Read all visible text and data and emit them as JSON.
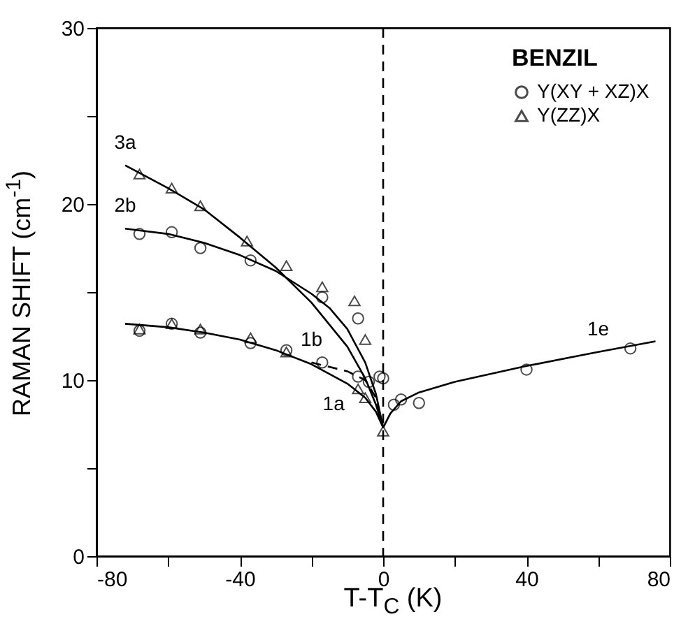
{
  "chart_data": {
    "type": "scatter",
    "xlabel": "T-T$_{C}$ (K)",
    "ylabel": "RAMAN SHIFT (cm$^{-1}$)",
    "legend_title": "BENZIL",
    "legend": "top right",
    "grid": false,
    "xlim": [
      -80,
      80
    ],
    "ylim": [
      0,
      30
    ],
    "xticks": [
      -80,
      {
        "value": -60,
        "label": null
      },
      -40,
      {
        "value": -20,
        "label": null
      },
      0,
      {
        "value": 20,
        "label": null
      },
      40,
      {
        "value": 60,
        "label": null
      },
      80
    ],
    "yticks": [
      0,
      {
        "value": 5,
        "label": null
      },
      10,
      {
        "value": 15,
        "label": null
      },
      20,
      {
        "value": 25,
        "label": null
      },
      30
    ],
    "series": [
      {
        "name": "Y(XY + XZ)X",
        "marker": "circle",
        "color": "#000000",
        "x": [
          -68,
          -59,
          -51,
          -37,
          -17,
          -7,
          -1,
          -68,
          -59,
          -51,
          -37,
          -27,
          -17,
          -7,
          -4,
          0,
          3,
          5,
          10,
          40,
          69
        ],
        "values": [
          18.3,
          18.4,
          17.5,
          16.8,
          14.7,
          13.5,
          10.2,
          12.8,
          13.2,
          12.7,
          12.1,
          11.7,
          11.0,
          10.2,
          9.9,
          10.1,
          8.6,
          8.9,
          8.7,
          10.6,
          11.8
        ]
      },
      {
        "name": "Y(ZZ)X",
        "marker": "triangle",
        "color": "#000000",
        "x": [
          -68,
          -59,
          -51,
          -38,
          -27,
          -17,
          -8,
          -5,
          0,
          -68,
          -59,
          -51,
          -37,
          -27,
          -7,
          -5
        ],
        "values": [
          21.7,
          20.9,
          19.9,
          17.9,
          16.5,
          15.3,
          14.5,
          12.3,
          7.1,
          12.9,
          13.2,
          12.9,
          12.4,
          11.6,
          9.5,
          9.0
        ]
      },
      {
        "type": "line",
        "marker": "none",
        "line_style": "solid",
        "color": "#000000",
        "x": [
          -72,
          -60,
          -50,
          -40,
          -30,
          -20,
          -10,
          -5,
          -2,
          0
        ],
        "values": [
          22.2,
          20.9,
          19.7,
          18.1,
          16.4,
          14.4,
          11.9,
          10.1,
          8.6,
          7.3
        ]
      },
      {
        "type": "line",
        "marker": "none",
        "line_style": "solid",
        "color": "#000000",
        "x": [
          -72,
          -60,
          -50,
          -40,
          -30,
          -20,
          -15,
          -10,
          -5,
          -2,
          0
        ],
        "values": [
          18.6,
          18.3,
          17.8,
          17.1,
          16.2,
          14.9,
          14.1,
          12.9,
          11.0,
          9.2,
          7.3
        ]
      },
      {
        "type": "line",
        "marker": "none",
        "line_style": "solid",
        "color": "#000000",
        "x": [
          -72,
          -60,
          -50,
          -40,
          -30,
          -20,
          -10,
          -5,
          -2,
          0
        ],
        "values": [
          13.2,
          13.0,
          12.7,
          12.3,
          11.7,
          10.9,
          9.8,
          9.0,
          8.2,
          7.3
        ]
      },
      {
        "type": "line",
        "marker": "none",
        "line_style": "dashed",
        "color": "#000000",
        "x": [
          -20,
          -10,
          -5,
          -2,
          0
        ],
        "values": [
          11.0,
          10.5,
          10.0,
          9.0,
          7.3
        ]
      },
      {
        "type": "line",
        "marker": "none",
        "line_style": "solid",
        "color": "#000000",
        "x": [
          0,
          2,
          5,
          10,
          20,
          40,
          60,
          76
        ],
        "values": [
          7.3,
          8.1,
          8.8,
          9.3,
          9.9,
          10.8,
          11.6,
          12.2
        ]
      }
    ],
    "ref_lines": [
      {
        "axis": "x",
        "value": 0,
        "line_style": "dashed",
        "color": "#000000"
      }
    ],
    "annotations": [
      {
        "text": "3a",
        "x": -72,
        "y": 22.2
      },
      {
        "text": "2b",
        "x": -72,
        "y": 18.6
      },
      {
        "text": "1b",
        "x": -20,
        "y": 11.0
      },
      {
        "text": "1a",
        "x": -10,
        "y": 9.8
      },
      {
        "text": "1e",
        "x": 60,
        "y": 11.6
      }
    ]
  }
}
